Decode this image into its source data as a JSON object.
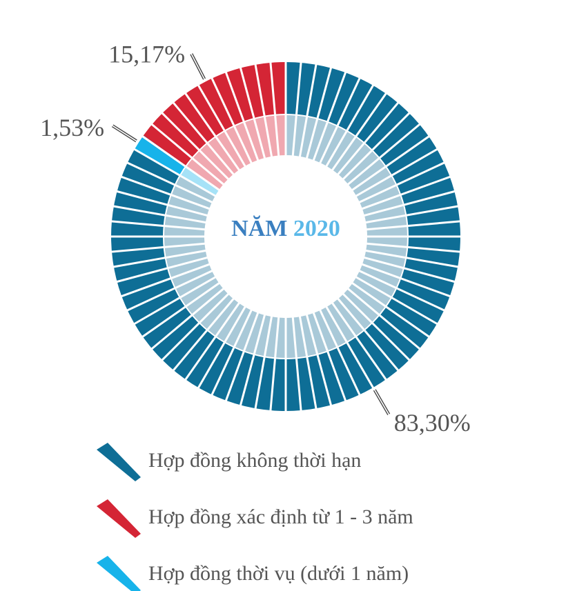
{
  "chart_data": {
    "type": "donut",
    "center_text": [
      "NĂM",
      "2020"
    ],
    "center_colors": [
      "#3a7fc0",
      "#5ab8e8"
    ],
    "series": [
      {
        "name": "Hợp đồng không thời hạn",
        "color": "#0e6e96",
        "light_color": "#a9c9d8"
      },
      {
        "name": "Hợp đồng xác định từ 1 - 3 năm",
        "color": "#d42535",
        "light_color": "#f0a8b0"
      },
      {
        "name": "Hợp đồng thời vụ (dưới 1 năm)",
        "color": "#17b3ea",
        "light_color": "#a6e2f7"
      }
    ],
    "values": [
      83.3,
      15.17,
      1.53
    ],
    "value_labels": [
      "83,30%",
      "15,17%",
      "1,53%"
    ]
  }
}
